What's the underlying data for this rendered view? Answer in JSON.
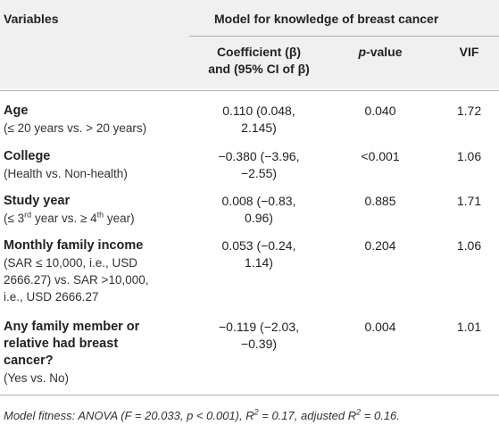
{
  "table": {
    "header": {
      "variables": "Variables",
      "model_group": "Model for knowledge of breast cancer",
      "coef_line1": "Coefficient (β)",
      "coef_line2": "and (95% CI of β)",
      "pvalue": "-value",
      "pvalue_italic": "p",
      "vif": "VIF"
    },
    "rows": [
      {
        "name": "Age",
        "desc": "(≤ 20 years vs. > 20 years)",
        "coef": [
          "0.110 (0.048,",
          "2.145)"
        ],
        "p": "0.040",
        "vif": "1.72"
      },
      {
        "name": "College",
        "desc": "(Health vs. Non-health)",
        "coef": [
          "−0.380 (−3.96,",
          "−2.55)"
        ],
        "p": "<0.001",
        "vif": "1.06"
      },
      {
        "name": "Study year",
        "desc_parts": [
          "(≤ 3",
          "rd",
          " year vs. ≥ 4",
          "th",
          " year)"
        ],
        "coef": [
          "0.008 (−0.83,",
          "0.96)"
        ],
        "p": "0.885",
        "vif": "1.71"
      },
      {
        "name": "Monthly family income",
        "desc_lines": [
          "(SAR ≤ 10,000, i.e., USD",
          "2666.27) vs. SAR >10,000,",
          "i.e., USD 2666.27"
        ],
        "coef": [
          "0.053 (−0.24,",
          "1.14)"
        ],
        "p": "0.204",
        "vif": "1.06"
      },
      {
        "name_lines": [
          "Any family member or",
          "relative had breast",
          "cancer?"
        ],
        "desc": "(Yes vs. No)",
        "coef": [
          "−0.119 (−2.03,",
          "−0.39)"
        ],
        "p": "0.004",
        "vif": "1.01"
      }
    ],
    "footnote": {
      "prefix": "Model fitness: ANOVA (F = 20.033, p < 0.001), R",
      "sup1": "2",
      "middle": " = 0.17, adjusted R",
      "sup2": "2",
      "suffix": " = 0.16."
    }
  }
}
